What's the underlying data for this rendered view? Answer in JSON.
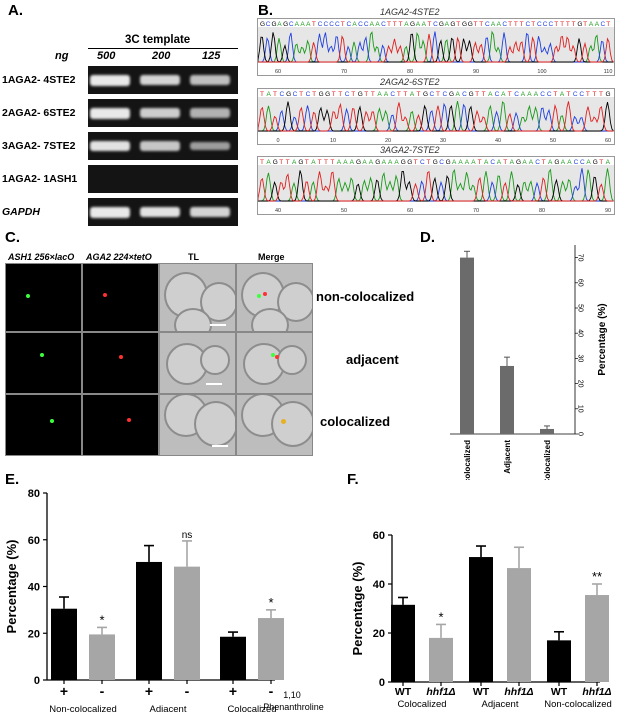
{
  "panelA": {
    "label": "A.",
    "template_title": "3C template",
    "ng_label": "ng",
    "amounts": [
      "500",
      "200",
      "125"
    ],
    "rows": [
      {
        "label": "1AGA2- 4STE2",
        "bands": [
          1.0,
          0.85,
          0.7
        ]
      },
      {
        "label": "2AGA2- 6STE2",
        "bands": [
          1.0,
          0.8,
          0.6
        ]
      },
      {
        "label": "3AGA2- 7STE2",
        "bands": [
          0.95,
          0.75,
          0.45
        ]
      },
      {
        "label": "1AGA2- 1ASH1",
        "bands": [
          0,
          0,
          0
        ]
      },
      {
        "label": "GAPDH",
        "bands": [
          1.0,
          0.95,
          0.85
        ]
      }
    ]
  },
  "panelB": {
    "label": "B.",
    "traces": [
      {
        "title": "1AGA2-4STE2",
        "seq": "GCGAGCAAATCCCCTCACCAACTTTAGAATCGAGTGGTTCAACTTTCTCCCTTTTGTAACT",
        "ticks": [
          "60",
          "70",
          "80",
          "90",
          "100",
          "110"
        ]
      },
      {
        "title": "2AGA2-6STE2",
        "seq": "TATCGCTCTGGTTCTGTTAACTTATGCTCGACGTTACATCAAACCTATCCTTTG",
        "ticks": [
          "0",
          "10",
          "20",
          "30",
          "40",
          "50",
          "60"
        ]
      },
      {
        "title": "3AGA2-7STE2",
        "seq": "TAGTTAGTATTTAAAGAAGAAAGGTCTGCGAAAATACATAGAACTAGAACCAGTA",
        "ticks": [
          "40",
          "50",
          "60",
          "70",
          "80",
          "90"
        ]
      }
    ]
  },
  "panelC": {
    "label": "C.",
    "col_headers": [
      "ASH1 256×lacO",
      "AGA2 224×tetO",
      "TL",
      "Merge"
    ],
    "row_labels": [
      "non-colocalized",
      "adjacent",
      "colocalized"
    ]
  },
  "panelD": {
    "label": "D.",
    "chart_data": {
      "type": "bar",
      "categories": [
        "Non-colocalized",
        "Adjacent",
        "Colocalized"
      ],
      "values": [
        70,
        27,
        2
      ],
      "errors": [
        2.5,
        3.5,
        1.2
      ],
      "ylabel": "Percentage (%)",
      "ylim": [
        0,
        75
      ],
      "yticks": [
        "0",
        "10",
        "20",
        "30",
        "40",
        "50",
        "60",
        "70"
      ],
      "color": "#6b6b6b"
    }
  },
  "panelE": {
    "label": "E.",
    "chart_data": {
      "type": "bar",
      "groups": [
        "Non-colocalized",
        "Adjacent",
        "Colocalized"
      ],
      "conditions": [
        "+",
        "-"
      ],
      "values": [
        [
          30.5,
          19.5
        ],
        [
          50.5,
          48.5
        ],
        [
          18.5,
          26.5
        ]
      ],
      "errors": [
        [
          5,
          3
        ],
        [
          7,
          11
        ],
        [
          2,
          3.5
        ]
      ],
      "significance": [
        [
          "",
          "*"
        ],
        [
          "",
          "ns"
        ],
        [
          "",
          "*"
        ]
      ],
      "colors": [
        "#000000",
        "#a6a6a6"
      ],
      "ylabel": "Percentage (%)",
      "ylim": [
        0,
        80
      ],
      "yticks": [
        "0",
        "20",
        "40",
        "60",
        "80"
      ],
      "treatment_label_line1": "1,10",
      "treatment_label_line2": "-Phenanthroline"
    }
  },
  "panelF": {
    "label": "F.",
    "chart_data": {
      "type": "bar",
      "groups": [
        "Colocalized",
        "Adjacent",
        "Non-colocalized"
      ],
      "conditions": [
        "WT",
        "hhf1Δ"
      ],
      "values": [
        [
          31.5,
          18
        ],
        [
          51,
          46.5
        ],
        [
          17,
          35.5
        ]
      ],
      "errors": [
        [
          3,
          5.5
        ],
        [
          4.5,
          8.5
        ],
        [
          3.5,
          4.5
        ]
      ],
      "significance": [
        [
          "",
          "*"
        ],
        [
          "",
          ""
        ],
        [
          "",
          "**"
        ]
      ],
      "colors": [
        "#000000",
        "#a6a6a6"
      ],
      "ylabel": "Percentage (%)",
      "ylim": [
        0,
        60
      ],
      "yticks": [
        "0",
        "20",
        "40",
        "60"
      ]
    }
  }
}
